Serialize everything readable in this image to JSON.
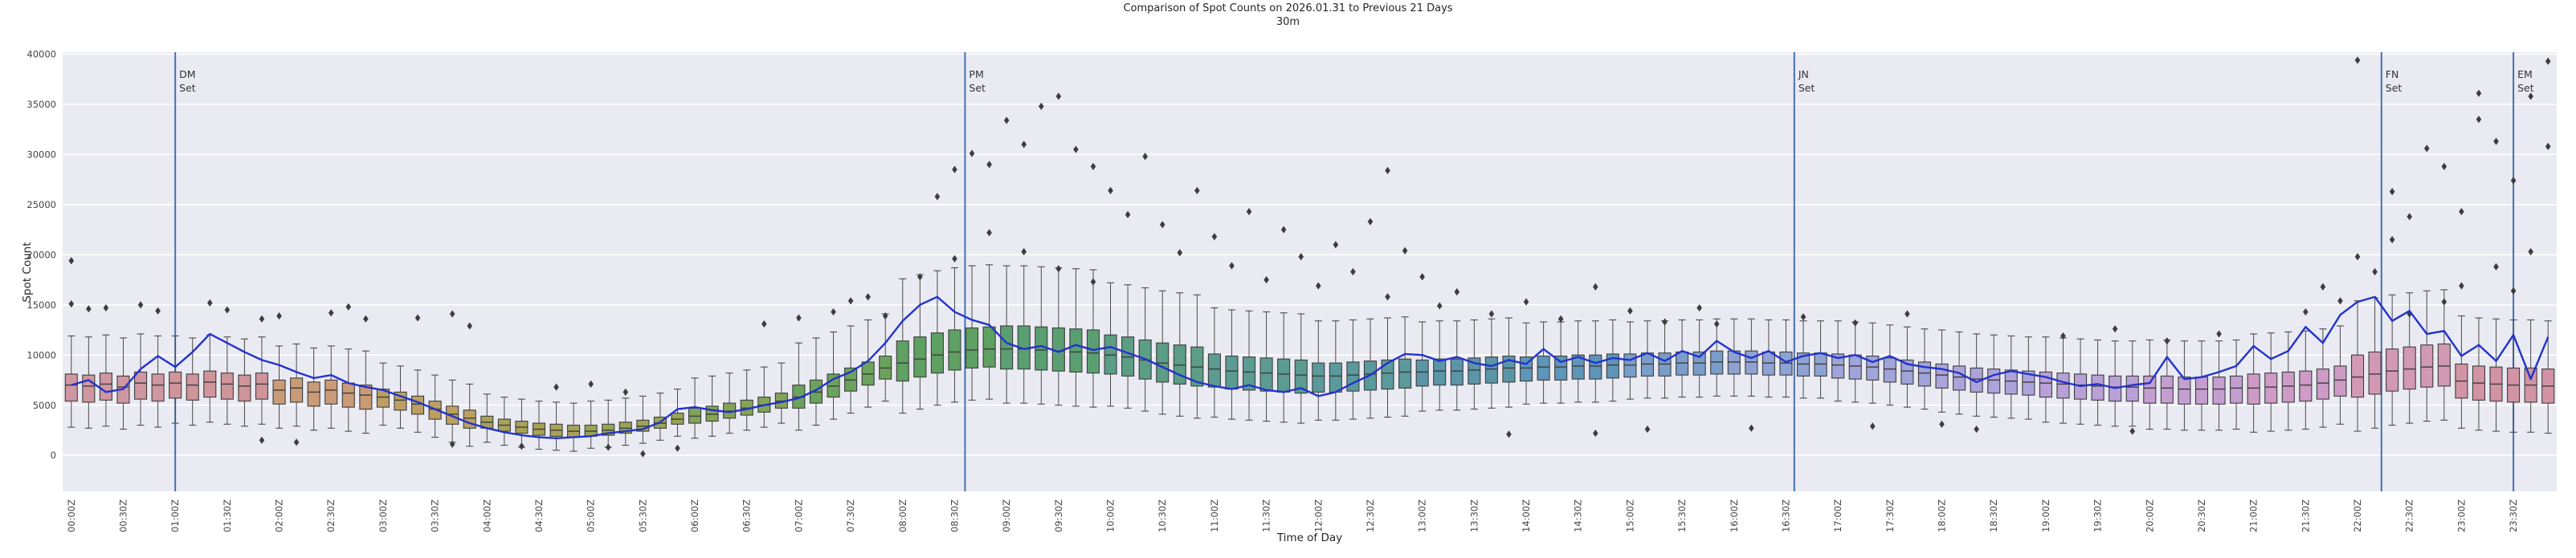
{
  "title": {
    "line1": "Comparison of Spot Counts on 2026.01.31 to Previous 21 Days",
    "line2": "30m"
  },
  "axes": {
    "x_label": "Time of Day",
    "y_label": "Spot Count",
    "y_ticks": [
      0,
      5000,
      10000,
      15000,
      20000,
      25000,
      30000,
      35000,
      40000
    ],
    "ylim": [
      -3600,
      40200
    ],
    "x_tick_labels": [
      "00:00Z",
      "00:30Z",
      "01:00Z",
      "01:30Z",
      "02:00Z",
      "02:30Z",
      "03:00Z",
      "03:30Z",
      "04:00Z",
      "04:30Z",
      "05:00Z",
      "05:30Z",
      "06:00Z",
      "06:30Z",
      "07:00Z",
      "07:30Z",
      "08:00Z",
      "08:30Z",
      "09:00Z",
      "09:30Z",
      "10:00Z",
      "10:30Z",
      "11:00Z",
      "11:30Z",
      "12:00Z",
      "12:30Z",
      "13:00Z",
      "13:30Z",
      "14:00Z",
      "14:30Z",
      "15:00Z",
      "15:30Z",
      "16:00Z",
      "16:30Z",
      "17:00Z",
      "17:30Z",
      "18:00Z",
      "18:30Z",
      "19:00Z",
      "19:30Z",
      "20:00Z",
      "20:30Z",
      "21:00Z",
      "21:30Z",
      "22:00Z",
      "22:30Z",
      "23:00Z",
      "23:30Z"
    ],
    "background": "#eaeaf2",
    "grid_color": "#ffffff"
  },
  "vlines": [
    {
      "label_line1": "DM",
      "label_line2": "Set",
      "hour": 1.0
    },
    {
      "label_line1": "PM",
      "label_line2": "Set",
      "hour": 8.6
    },
    {
      "label_line1": "JN",
      "label_line2": "Set",
      "hour": 16.58
    },
    {
      "label_line1": "FN",
      "label_line2": "Set",
      "hour": 22.23
    },
    {
      "label_line1": "EM",
      "label_line2": "Set",
      "hour": 23.5
    }
  ],
  "colors": {
    "line": "#2233cc",
    "vline": "#4671ad",
    "box_edge": "#3d3d3d",
    "whisker": "#4a4a4a",
    "median": "#3d3d3d",
    "flier": "#3d3d3d",
    "tick_text": "#444444",
    "box_fill_by_hour": [
      "#CF97A1",
      "#D0949B",
      "#C99B77",
      "#BCA063",
      "#A8A258",
      "#9AA455",
      "#83A457",
      "#6BA35C",
      "#5FA063",
      "#5A9F72",
      "#5B9D85",
      "#5C9B92",
      "#5A999C",
      "#5B95A8",
      "#5E95B9",
      "#7A9DC9",
      "#8FA2D4",
      "#9FA4D9",
      "#ADA3DA",
      "#B9A0D7",
      "#C49ED1",
      "#CD9BC5",
      "#D299B4",
      "#D294A5"
    ]
  },
  "chart_data": {
    "type": "boxplot+line",
    "title": "Comparison of Spot Counts on 2026.01.31 to Previous 21 Days",
    "subtitle": "30m",
    "xlabel": "Time of Day",
    "ylabel": "Spot Count",
    "ylim": [
      -3600,
      40200
    ],
    "x_interval_minutes": 10,
    "n_slots": 144,
    "box_series_name": "Previous 21 Days distribution",
    "line_series_name": "2026.01.31",
    "median": [
      7000,
      6900,
      7100,
      6800,
      7200,
      7000,
      7200,
      7000,
      7300,
      7100,
      6900,
      7100,
      6500,
      6700,
      6300,
      6500,
      6200,
      6000,
      5800,
      5500,
      5100,
      4600,
      4100,
      3700,
      3300,
      3000,
      2800,
      2600,
      2500,
      2400,
      2400,
      2500,
      2700,
      2900,
      3200,
      3600,
      3900,
      4100,
      4400,
      4700,
      5000,
      5400,
      5800,
      6300,
      6900,
      7500,
      8100,
      8700,
      9200,
      9600,
      10000,
      10300,
      10500,
      10600,
      10600,
      10600,
      10500,
      10400,
      10300,
      10200,
      10000,
      9800,
      9500,
      9200,
      9000,
      8800,
      8600,
      8400,
      8300,
      8200,
      8100,
      8000,
      7900,
      7900,
      8000,
      8100,
      8200,
      8300,
      8300,
      8400,
      8400,
      8500,
      8600,
      8700,
      8700,
      8800,
      8800,
      8900,
      8900,
      9000,
      9000,
      9100,
      9100,
      9200,
      9200,
      9300,
      9300,
      9300,
      9200,
      9200,
      9100,
      9100,
      9000,
      8900,
      8800,
      8600,
      8400,
      8200,
      8000,
      7800,
      7600,
      7500,
      7400,
      7300,
      7200,
      7100,
      7000,
      6900,
      6800,
      6800,
      6700,
      6700,
      6600,
      6600,
      6600,
      6700,
      6700,
      6800,
      6900,
      7000,
      7200,
      7500,
      7800,
      8100,
      8400,
      8600,
      8800,
      8900,
      7400,
      7200,
      7100,
      7000,
      7000,
      6900
    ],
    "q1": [
      5400,
      5300,
      5500,
      5200,
      5600,
      5400,
      5700,
      5500,
      5800,
      5600,
      5400,
      5600,
      5100,
      5300,
      4900,
      5100,
      4800,
      4600,
      4800,
      4500,
      4100,
      3600,
      3100,
      2700,
      2700,
      2400,
      2200,
      2000,
      1900,
      1800,
      1900,
      2000,
      2200,
      2400,
      2700,
      3100,
      3200,
      3400,
      3700,
      4000,
      4300,
      4700,
      4700,
      5200,
      5800,
      6400,
      7000,
      7600,
      7400,
      7800,
      8200,
      8500,
      8700,
      8800,
      8600,
      8600,
      8500,
      8400,
      8300,
      8200,
      8100,
      7900,
      7600,
      7300,
      7100,
      6900,
      6800,
      6600,
      6500,
      6400,
      6300,
      6200,
      6300,
      6300,
      6400,
      6500,
      6600,
      6700,
      6900,
      7000,
      7000,
      7100,
      7200,
      7300,
      7400,
      7500,
      7500,
      7600,
      7600,
      7700,
      7800,
      7900,
      7900,
      8000,
      8000,
      8100,
      8100,
      8100,
      8000,
      8000,
      7900,
      7900,
      7700,
      7600,
      7500,
      7300,
      7100,
      6900,
      6700,
      6500,
      6300,
      6200,
      6100,
      6000,
      5800,
      5700,
      5600,
      5500,
      5400,
      5400,
      5200,
      5200,
      5100,
      5100,
      5100,
      5200,
      5100,
      5200,
      5300,
      5400,
      5600,
      5900,
      5800,
      6100,
      6400,
      6600,
      6800,
      6900,
      5700,
      5500,
      5400,
      5300,
      5300,
      5200
    ],
    "q3": [
      8100,
      8000,
      8200,
      7900,
      8300,
      8100,
      8300,
      8100,
      8400,
      8200,
      8000,
      8200,
      7500,
      7700,
      7300,
      7500,
      7200,
      7000,
      6600,
      6300,
      5900,
      5400,
      4900,
      4500,
      3900,
      3600,
      3400,
      3200,
      3100,
      3000,
      3000,
      3100,
      3300,
      3500,
      3800,
      4200,
      4700,
      4900,
      5200,
      5500,
      5800,
      6200,
      7000,
      7500,
      8100,
      8700,
      9300,
      9900,
      11400,
      11800,
      12200,
      12500,
      12700,
      12800,
      12900,
      12900,
      12800,
      12700,
      12600,
      12500,
      12000,
      11800,
      11500,
      11200,
      11000,
      10800,
      10100,
      9900,
      9800,
      9700,
      9600,
      9500,
      9200,
      9200,
      9300,
      9400,
      9500,
      9600,
      9500,
      9600,
      9600,
      9700,
      9800,
      9900,
      9800,
      9900,
      9900,
      10000,
      10000,
      10100,
      10100,
      10200,
      10200,
      10300,
      10300,
      10400,
      10400,
      10400,
      10300,
      10300,
      10200,
      10200,
      10100,
      10000,
      9900,
      9700,
      9500,
      9300,
      9100,
      8900,
      8700,
      8600,
      8500,
      8400,
      8300,
      8200,
      8100,
      8000,
      7900,
      7900,
      7900,
      7900,
      7800,
      7800,
      7800,
      7900,
      8100,
      8200,
      8300,
      8400,
      8600,
      8900,
      10000,
      10300,
      10600,
      10800,
      11000,
      11100,
      9100,
      8900,
      8800,
      8700,
      8700,
      8600
    ],
    "whisker_low": [
      2800,
      2700,
      2900,
      2600,
      3000,
      2800,
      3200,
      3000,
      3300,
      3100,
      2900,
      3100,
      2700,
      2900,
      2500,
      2700,
      2400,
      2200,
      3000,
      2700,
      2300,
      1800,
      1300,
      900,
      1300,
      1000,
      800,
      600,
      500,
      400,
      700,
      800,
      1000,
      1200,
      1500,
      1900,
      1700,
      1900,
      2200,
      2500,
      2800,
      3200,
      2500,
      3000,
      3600,
      4200,
      4800,
      5400,
      4200,
      4600,
      5000,
      5300,
      5500,
      5600,
      5200,
      5200,
      5100,
      5000,
      4900,
      4800,
      4900,
      4700,
      4400,
      4100,
      3900,
      3700,
      3800,
      3600,
      3500,
      3400,
      3300,
      3200,
      3500,
      3500,
      3600,
      3700,
      3800,
      3900,
      4400,
      4500,
      4500,
      4600,
      4700,
      4800,
      5100,
      5200,
      5200,
      5300,
      5300,
      5400,
      5600,
      5700,
      5700,
      5800,
      5800,
      5900,
      5900,
      5900,
      5800,
      5800,
      5700,
      5700,
      5400,
      5300,
      5200,
      5000,
      4800,
      4600,
      4300,
      4100,
      3900,
      3800,
      3700,
      3600,
      3300,
      3200,
      3100,
      3000,
      2900,
      2900,
      2600,
      2600,
      2500,
      2500,
      2500,
      2600,
      2300,
      2400,
      2500,
      2600,
      2800,
      3100,
      2400,
      2700,
      3000,
      3200,
      3400,
      3500,
      2700,
      2500,
      2400,
      2300,
      2300,
      2200
    ],
    "whisker_high": [
      11900,
      11800,
      12000,
      11700,
      12100,
      11900,
      11900,
      11700,
      12000,
      11800,
      11600,
      11800,
      10900,
      11100,
      10700,
      10900,
      10600,
      10400,
      9200,
      8900,
      8500,
      8000,
      7500,
      7100,
      6100,
      5800,
      5600,
      5400,
      5300,
      5200,
      5400,
      5500,
      5700,
      5900,
      6200,
      6600,
      7700,
      7900,
      8200,
      8500,
      8800,
      9200,
      11200,
      11700,
      12300,
      12900,
      13500,
      14100,
      17600,
      18000,
      18400,
      18700,
      18900,
      19000,
      18900,
      18900,
      18800,
      18700,
      18600,
      18500,
      17200,
      17000,
      16700,
      16400,
      16200,
      16000,
      14700,
      14500,
      14400,
      14300,
      14200,
      14100,
      13400,
      13400,
      13500,
      13600,
      13700,
      13800,
      13300,
      13400,
      13400,
      13500,
      13600,
      13700,
      13200,
      13300,
      13300,
      13400,
      13400,
      13500,
      13300,
      13400,
      13400,
      13500,
      13500,
      13600,
      13600,
      13600,
      13500,
      13500,
      13400,
      13400,
      13400,
      13300,
      13200,
      13000,
      12800,
      12600,
      12500,
      12300,
      12100,
      12000,
      11900,
      11800,
      11800,
      11700,
      11600,
      11500,
      11400,
      11400,
      11500,
      11500,
      11400,
      11400,
      11400,
      11500,
      12100,
      12200,
      12300,
      12400,
      12600,
      12900,
      15400,
      15700,
      16000,
      16200,
      16400,
      16500,
      13900,
      13700,
      13600,
      13500,
      13500,
      13400
    ],
    "line": [
      7000,
      7500,
      6300,
      6600,
      8600,
      9900,
      8800,
      10300,
      12100,
      11200,
      10300,
      9500,
      9000,
      8300,
      7700,
      8000,
      7200,
      6800,
      6500,
      5900,
      5300,
      4600,
      3900,
      3200,
      2700,
      2300,
      2000,
      1800,
      1700,
      1800,
      1900,
      2200,
      2400,
      2600,
      3300,
      4600,
      4800,
      4500,
      4300,
      4600,
      5000,
      5300,
      5700,
      6500,
      7600,
      8300,
      9400,
      11200,
      13400,
      15000,
      15800,
      14300,
      13500,
      13000,
      11200,
      10600,
      10900,
      10300,
      11000,
      10500,
      10800,
      10200,
      9600,
      8800,
      8000,
      7300,
      6900,
      6600,
      7000,
      6500,
      6300,
      6700,
      5900,
      6300,
      7200,
      8000,
      9200,
      10100,
      10000,
      9400,
      9800,
      9200,
      8900,
      9500,
      9100,
      10600,
      9300,
      9800,
      9200,
      9700,
      9500,
      10200,
      9400,
      10400,
      9800,
      11400,
      10300,
      9700,
      10400,
      9300,
      9900,
      10200,
      9700,
      10000,
      9300,
      9900,
      9100,
      8800,
      8600,
      8200,
      7300,
      8000,
      8400,
      8100,
      7800,
      7300,
      6900,
      7100,
      6700,
      7000,
      7200,
      9800,
      7600,
      7800,
      8300,
      8900,
      10900,
      9600,
      10400,
      12800,
      11200,
      14000,
      15300,
      15800,
      13400,
      14400,
      12100,
      12400,
      9900,
      11000,
      9400,
      12000,
      7600,
      11800
    ],
    "fliers": [
      [
        0,
        19400
      ],
      [
        0,
        15100
      ],
      [
        1,
        14600
      ],
      [
        2,
        14700
      ],
      [
        4,
        15000
      ],
      [
        5,
        14400
      ],
      [
        8,
        15200
      ],
      [
        9,
        14500
      ],
      [
        11,
        13600
      ],
      [
        12,
        13900
      ],
      [
        15,
        14200
      ],
      [
        16,
        14800
      ],
      [
        17,
        13600
      ],
      [
        20,
        13700
      ],
      [
        22,
        14100
      ],
      [
        23,
        12900
      ],
      [
        11,
        1500
      ],
      [
        13,
        1300
      ],
      [
        22,
        1100
      ],
      [
        26,
        900
      ],
      [
        31,
        800
      ],
      [
        33,
        150
      ],
      [
        35,
        700
      ],
      [
        28,
        6800
      ],
      [
        30,
        7100
      ],
      [
        32,
        6300
      ],
      [
        40,
        13100
      ],
      [
        42,
        13700
      ],
      [
        44,
        14300
      ],
      [
        45,
        15400
      ],
      [
        46,
        15800
      ],
      [
        47,
        13900
      ],
      [
        49,
        17800
      ],
      [
        50,
        25800
      ],
      [
        51,
        28500
      ],
      [
        51,
        19600
      ],
      [
        52,
        30100
      ],
      [
        53,
        29000
      ],
      [
        53,
        22200
      ],
      [
        54,
        33400
      ],
      [
        55,
        31000
      ],
      [
        55,
        20300
      ],
      [
        56,
        34800
      ],
      [
        57,
        35800
      ],
      [
        57,
        18600
      ],
      [
        58,
        30500
      ],
      [
        59,
        28800
      ],
      [
        59,
        17300
      ],
      [
        60,
        26400
      ],
      [
        61,
        24000
      ],
      [
        62,
        29800
      ],
      [
        63,
        23000
      ],
      [
        64,
        20200
      ],
      [
        65,
        26400
      ],
      [
        66,
        21800
      ],
      [
        67,
        18900
      ],
      [
        68,
        24300
      ],
      [
        69,
        17500
      ],
      [
        70,
        22500
      ],
      [
        71,
        19800
      ],
      [
        72,
        16900
      ],
      [
        73,
        21000
      ],
      [
        74,
        18300
      ],
      [
        75,
        23300
      ],
      [
        76,
        28400
      ],
      [
        76,
        15800
      ],
      [
        77,
        20400
      ],
      [
        78,
        17800
      ],
      [
        79,
        14900
      ],
      [
        80,
        16300
      ],
      [
        82,
        14100
      ],
      [
        84,
        15300
      ],
      [
        86,
        13600
      ],
      [
        88,
        16800
      ],
      [
        90,
        14400
      ],
      [
        92,
        13300
      ],
      [
        94,
        14700
      ],
      [
        95,
        13100
      ],
      [
        83,
        2100
      ],
      [
        88,
        2200
      ],
      [
        91,
        2600
      ],
      [
        97,
        2700
      ],
      [
        100,
        13800
      ],
      [
        103,
        13200
      ],
      [
        106,
        14100
      ],
      [
        104,
        2900
      ],
      [
        108,
        3100
      ],
      [
        110,
        2600
      ],
      [
        115,
        11900
      ],
      [
        118,
        12600
      ],
      [
        119,
        2400
      ],
      [
        121,
        11400
      ],
      [
        124,
        12100
      ],
      [
        129,
        14300
      ],
      [
        130,
        16800
      ],
      [
        131,
        15400
      ],
      [
        132,
        19800
      ],
      [
        132,
        39400
      ],
      [
        133,
        18300
      ],
      [
        134,
        21500
      ],
      [
        134,
        26300
      ],
      [
        135,
        23800
      ],
      [
        135,
        14100
      ],
      [
        136,
        30600
      ],
      [
        137,
        28800
      ],
      [
        137,
        15300
      ],
      [
        138,
        24300
      ],
      [
        138,
        16900
      ],
      [
        139,
        33500
      ],
      [
        139,
        36100
      ],
      [
        140,
        31300
      ],
      [
        140,
        18800
      ],
      [
        141,
        27400
      ],
      [
        141,
        16400
      ],
      [
        142,
        35800
      ],
      [
        142,
        20300
      ],
      [
        143,
        39300
      ],
      [
        143,
        30800
      ]
    ]
  }
}
